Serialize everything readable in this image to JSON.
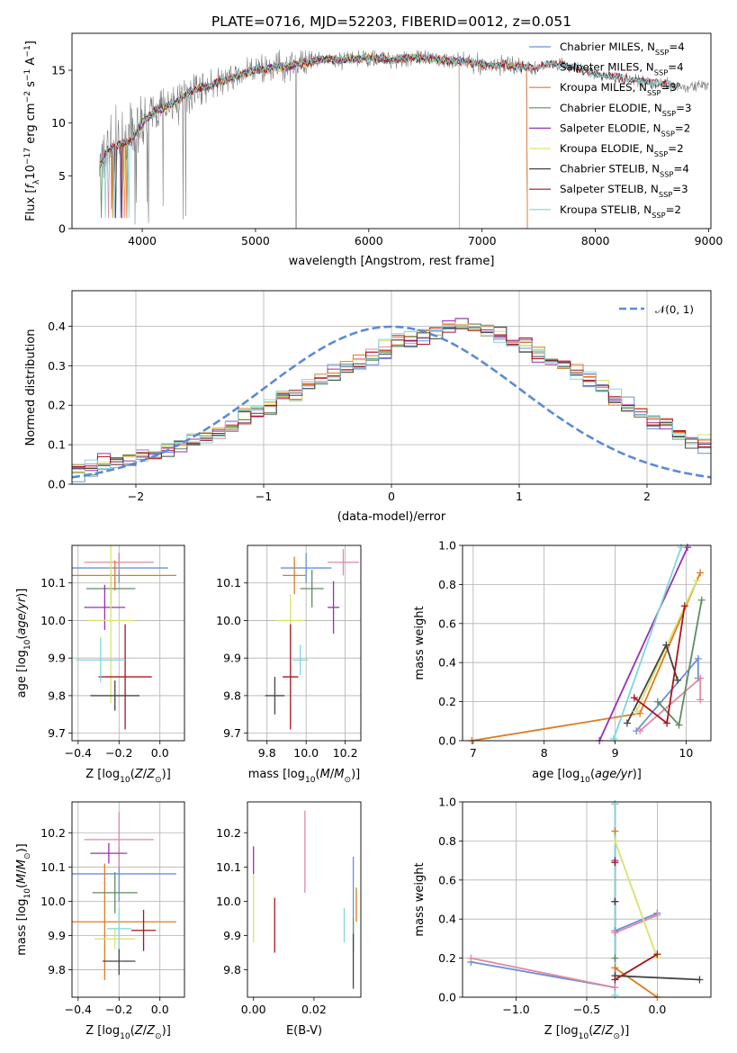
{
  "colors": {
    "series": [
      "#6a8fdc",
      "#e08a9e",
      "#e07b20",
      "#5f8c5f",
      "#9b2fb0",
      "#d9e36a",
      "#444444",
      "#a8151c",
      "#7fd6dc"
    ],
    "observed": "#7f7f7f",
    "grid": "#b0b0b0",
    "normal_curve": "#5a8ad8"
  },
  "chart_data": [
    {
      "id": "spectrum",
      "type": "line",
      "title": "PLATE=0716, MJD=52203, FIBERID=0012, z=0.051",
      "xlabel": "wavelength [Angstrom, rest frame]",
      "ylabel": "Flux [fλ10⁻¹⁷ erg cm⁻² s⁻¹ A⁻¹]",
      "xlim": [
        3380,
        9020
      ],
      "ylim": [
        0,
        18.5
      ],
      "xticks": [
        "4000",
        "5000",
        "6000",
        "7000",
        "8000",
        "9000"
      ],
      "yticks": [
        "0",
        "5",
        "10",
        "15"
      ],
      "grid": false,
      "legend_position": "upper right",
      "legend": [
        {
          "name": "Chabrier MILES",
          "nssp": "4"
        },
        {
          "name": "Salpeter MILES",
          "nssp": "4"
        },
        {
          "name": "Kroupa MILES",
          "nssp": "3"
        },
        {
          "name": "Chabrier ELODIE",
          "nssp": "3"
        },
        {
          "name": "Salpeter ELODIE",
          "nssp": "2"
        },
        {
          "name": "Kroupa ELODIE",
          "nssp": "2"
        },
        {
          "name": "Chabrier STELIB",
          "nssp": "4"
        },
        {
          "name": "Salpeter STELIB",
          "nssp": "3"
        },
        {
          "name": "Kroupa STELIB",
          "nssp": "2"
        }
      ],
      "continuum": {
        "wavelength": [
          3620,
          3700,
          3800,
          3900,
          4000,
          4100,
          4200,
          4300,
          4400,
          4500,
          4600,
          4700,
          4800,
          4900,
          5000,
          5200,
          5400,
          5600,
          5800,
          6000,
          6200,
          6400,
          6600,
          6800,
          7000,
          7200,
          7400,
          7500,
          7600,
          7800,
          8000,
          8200,
          8400,
          8600,
          8750
        ],
        "flux": [
          5.8,
          7.5,
          8.0,
          8.3,
          10.0,
          11.0,
          11.5,
          12.0,
          12.8,
          13.3,
          13.5,
          14.0,
          14.3,
          14.7,
          15.0,
          15.3,
          15.6,
          16.0,
          16.0,
          16.2,
          16.0,
          16.2,
          16.0,
          15.9,
          15.5,
          15.5,
          15.3,
          15.2,
          15.7,
          15.3,
          14.6,
          14.3,
          14.0,
          13.7,
          13.5
        ]
      },
      "model_cutoff": {
        "Chabrier MILES": 7400,
        "Salpeter MILES": 7400,
        "Kroupa MILES": 7400,
        "Chabrier ELODIE": 6800,
        "Salpeter ELODIE": 6800,
        "Kroupa ELODIE": 6800,
        "Chabrier STELIB": 8750,
        "Salpeter STELIB": 8750,
        "Kroupa STELIB": 8750
      }
    },
    {
      "id": "residuals",
      "type": "histogram",
      "xlabel": "(data-model)/error",
      "ylabel": "Normed distribution",
      "xlim": [
        -2.5,
        2.5
      ],
      "ylim": [
        0,
        0.49
      ],
      "xticks": [
        "−2",
        "−1",
        "0",
        "1",
        "2"
      ],
      "yticks": [
        "0.0",
        "0.1",
        "0.2",
        "0.3",
        "0.4"
      ],
      "grid": true,
      "legend_position": "upper right",
      "legend_label": "𝒩(0, 1)",
      "bin_width": 0.1,
      "bin_start": -2.5,
      "density": [
        0.035,
        0.04,
        0.05,
        0.06,
        0.065,
        0.07,
        0.08,
        0.09,
        0.1,
        0.11,
        0.12,
        0.13,
        0.15,
        0.17,
        0.19,
        0.2,
        0.22,
        0.23,
        0.25,
        0.27,
        0.28,
        0.3,
        0.31,
        0.32,
        0.34,
        0.36,
        0.37,
        0.38,
        0.39,
        0.4,
        0.4,
        0.4,
        0.39,
        0.38,
        0.36,
        0.35,
        0.33,
        0.31,
        0.3,
        0.28,
        0.26,
        0.24,
        0.22,
        0.2,
        0.18,
        0.16,
        0.15,
        0.13,
        0.11,
        0.1
      ]
    },
    {
      "id": "age-vs-metallicity",
      "type": "scatter",
      "xlabel": "Z [log₁₀(Z/Z☉)]",
      "ylabel": "age  [log₁₀(age/yr)]",
      "xlim": [
        -0.43,
        0.12
      ],
      "ylim": [
        9.68,
        10.2
      ],
      "xticks": [
        "−0.4",
        "−0.2",
        "0.0"
      ],
      "yticks": [
        "9.7",
        "9.8",
        "9.9",
        "10.0",
        "10.1"
      ],
      "grid": true,
      "points": [
        {
          "x": -0.2,
          "xerr": 0.24,
          "y": 10.14,
          "yerr": 0.04
        },
        {
          "x": -0.2,
          "xerr": 0.17,
          "y": 10.155,
          "yerr": 0.025
        },
        {
          "x": -0.22,
          "xerr": 0.3,
          "y": 10.12,
          "yerr": 0.04
        },
        {
          "x": -0.24,
          "xerr": 0.12,
          "y": 10.085,
          "yerr": 0.04
        },
        {
          "x": -0.27,
          "xerr": 0.1,
          "y": 10.035,
          "yerr": 0.06
        },
        {
          "x": -0.24,
          "xerr": 0.11,
          "y": 10.0,
          "yerr": 0.22
        },
        {
          "x": -0.22,
          "xerr": 0.12,
          "y": 9.8,
          "yerr": 0.04
        },
        {
          "x": -0.17,
          "xerr": 0.13,
          "y": 9.85,
          "yerr": 0.14
        },
        {
          "x": -0.29,
          "xerr": 0.12,
          "y": 9.895,
          "yerr": 0.06
        }
      ]
    },
    {
      "id": "age-vs-mass",
      "type": "scatter",
      "xlabel": "mass [log₁₀(M/M☉)]",
      "xlim": [
        9.7,
        10.28
      ],
      "ylim": [
        9.68,
        10.2
      ],
      "xticks": [
        "9.8",
        "10.0",
        "10.2"
      ],
      "yticks": [
        "9.7",
        "9.8",
        "9.9",
        "10.0",
        "10.1"
      ],
      "grid": true,
      "points": [
        {
          "x": 10.0,
          "xerr": 0.13,
          "y": 10.14,
          "yerr": 0.04
        },
        {
          "x": 10.19,
          "xerr": 0.08,
          "y": 10.155,
          "yerr": 0.035
        },
        {
          "x": 9.94,
          "xerr": 0.06,
          "y": 10.12,
          "yerr": 0.05
        },
        {
          "x": 10.03,
          "xerr": 0.06,
          "y": 10.085,
          "yerr": 0.05
        },
        {
          "x": 10.14,
          "xerr": 0.03,
          "y": 10.035,
          "yerr": 0.07
        },
        {
          "x": 9.92,
          "xerr": 0.07,
          "y": 10.0,
          "yerr": 0.07
        },
        {
          "x": 9.84,
          "xerr": 0.05,
          "y": 9.8,
          "yerr": 0.05
        },
        {
          "x": 9.92,
          "xerr": 0.04,
          "y": 9.85,
          "yerr": 0.14
        },
        {
          "x": 9.97,
          "xerr": 0.04,
          "y": 9.895,
          "yerr": 0.04
        }
      ]
    },
    {
      "id": "mass-weight-vs-age",
      "type": "line",
      "xlabel": "age  [log₁₀(age/yr)]",
      "ylabel": "mass weight",
      "xlim": [
        6.85,
        10.35
      ],
      "ylim": [
        0,
        1.0
      ],
      "xticks": [
        "7",
        "8",
        "9",
        "10"
      ],
      "yticks": [
        "0.0",
        "0.2",
        "0.4",
        "0.6",
        "0.8",
        "1.0"
      ],
      "grid": true,
      "series": [
        {
          "age": [
            9.3,
            10.17,
            10.17
          ],
          "weight": [
            0.05,
            0.42,
            0.32
          ]
        },
        {
          "age": [
            9.35,
            10.2,
            10.2
          ],
          "weight": [
            0.05,
            0.32,
            0.21
          ]
        },
        {
          "age": [
            6.98,
            9.35,
            10.2
          ],
          "weight": [
            0.0,
            0.14,
            0.86
          ]
        },
        {
          "age": [
            9.6,
            9.9,
            10.22
          ],
          "weight": [
            0.2,
            0.08,
            0.72
          ]
        },
        {
          "age": [
            8.78,
            10.02
          ],
          "weight": [
            0.0,
            0.99
          ]
        },
        {
          "age": [
            9.3,
            10.15
          ],
          "weight": [
            0.15,
            0.82
          ]
        },
        {
          "age": [
            9.17,
            9.72,
            9.88
          ],
          "weight": [
            0.09,
            0.49,
            0.31
          ]
        },
        {
          "age": [
            9.27,
            9.73,
            9.98
          ],
          "weight": [
            0.22,
            0.09,
            0.69
          ]
        },
        {
          "age": [
            8.98,
            9.93
          ],
          "weight": [
            0.01,
            0.99
          ]
        }
      ]
    },
    {
      "id": "mass-vs-metallicity",
      "type": "scatter",
      "xlabel": "Z [log₁₀(Z/Z☉)]",
      "ylabel": "mass [log₁₀(M/M☉)]",
      "xlim": [
        -0.43,
        0.12
      ],
      "ylim": [
        9.72,
        10.29
      ],
      "xticks": [
        "−0.4",
        "−0.2",
        "0.0"
      ],
      "yticks": [
        "9.8",
        "9.9",
        "10.0",
        "10.1",
        "10.2"
      ],
      "grid": true,
      "points": [
        {
          "x": -0.2,
          "xerr": 0.28,
          "y": 10.08,
          "yerr": 0.08
        },
        {
          "x": -0.2,
          "xerr": 0.17,
          "y": 10.18,
          "yerr": 0.08
        },
        {
          "x": -0.27,
          "xerr": 0.35,
          "y": 9.94,
          "yerr": 0.17
        },
        {
          "x": -0.22,
          "xerr": 0.11,
          "y": 10.025,
          "yerr": 0.06
        },
        {
          "x": -0.25,
          "xerr": 0.09,
          "y": 10.14,
          "yerr": 0.03
        },
        {
          "x": -0.22,
          "xerr": 0.1,
          "y": 9.89,
          "yerr": 0.03
        },
        {
          "x": -0.2,
          "xerr": 0.08,
          "y": 9.825,
          "yerr": 0.04
        },
        {
          "x": -0.08,
          "xerr": 0.06,
          "y": 9.915,
          "yerr": 0.06
        },
        {
          "x": -0.2,
          "xerr": 0.06,
          "y": 9.92,
          "yerr": 0.06
        }
      ]
    },
    {
      "id": "mass-vs-extinction",
      "type": "scatter",
      "xlabel": "E(B-V)",
      "xlim": [
        -0.002,
        0.0355
      ],
      "ylim": [
        9.72,
        10.29
      ],
      "xticks": [
        "0.00",
        "0.02"
      ],
      "yticks": [
        "9.8",
        "9.9",
        "10.0",
        "10.1",
        "10.2"
      ],
      "grid": false,
      "points": [
        {
          "x": 0.033,
          "xerr": 0,
          "y": 10.04,
          "yerr": 0.09
        },
        {
          "x": 0.017,
          "xerr": 0,
          "y": 10.145,
          "yerr": 0.12
        },
        {
          "x": 0.034,
          "xerr": 0,
          "y": 9.99,
          "yerr": 0.05
        },
        {
          "x": 0.033,
          "xerr": 0,
          "y": 9.9,
          "yerr": 0.05
        },
        {
          "x": 0.0,
          "xerr": 0,
          "y": 10.12,
          "yerr": 0.04
        },
        {
          "x": 0.0,
          "xerr": 0,
          "y": 9.98,
          "yerr": 0.1
        },
        {
          "x": 0.033,
          "xerr": 0,
          "y": 9.825,
          "yerr": 0.08
        },
        {
          "x": 0.007,
          "xerr": 0,
          "y": 9.93,
          "yerr": 0.08
        },
        {
          "x": 0.03,
          "xerr": 0,
          "y": 9.93,
          "yerr": 0.05
        }
      ]
    },
    {
      "id": "mass-weight-vs-metallicity",
      "type": "line",
      "xlabel": "Z [log₁₀(Z/Z☉)]",
      "ylabel": "mass weight",
      "xlim": [
        -1.38,
        0.38
      ],
      "ylim": [
        0,
        1.0
      ],
      "xticks": [
        "−1.0",
        "−0.5",
        "0.0"
      ],
      "yticks": [
        "0.0",
        "0.2",
        "0.4",
        "0.6",
        "0.8",
        "1.0"
      ],
      "grid": true,
      "series": [
        {
          "z": [
            -1.32,
            -0.3,
            -0.3,
            0.0
          ],
          "weight": [
            0.18,
            0.05,
            0.34,
            0.43
          ]
        },
        {
          "z": [
            -1.32,
            -0.3,
            -0.3,
            0.0
          ],
          "weight": [
            0.2,
            0.05,
            0.33,
            0.42
          ]
        },
        {
          "z": [
            -0.3,
            -0.3,
            0.0
          ],
          "weight": [
            0.85,
            0.15,
            0.0
          ]
        },
        {
          "z": [
            -0.3,
            -0.3
          ],
          "weight": [
            0.2,
            0.49
          ]
        },
        {
          "z": [
            -0.3,
            -0.3
          ],
          "weight": [
            0.7,
            0.99
          ]
        },
        {
          "z": [
            -0.3,
            0.0
          ],
          "weight": [
            0.8,
            0.2
          ]
        },
        {
          "z": [
            -0.3,
            -0.3,
            0.3
          ],
          "weight": [
            0.49,
            0.11,
            0.09
          ]
        },
        {
          "z": [
            -0.3,
            -0.3,
            0.0
          ],
          "weight": [
            0.69,
            0.09,
            0.22
          ]
        },
        {
          "z": [
            -0.3,
            -0.3
          ],
          "weight": [
            0.01,
            0.99
          ]
        }
      ]
    }
  ]
}
